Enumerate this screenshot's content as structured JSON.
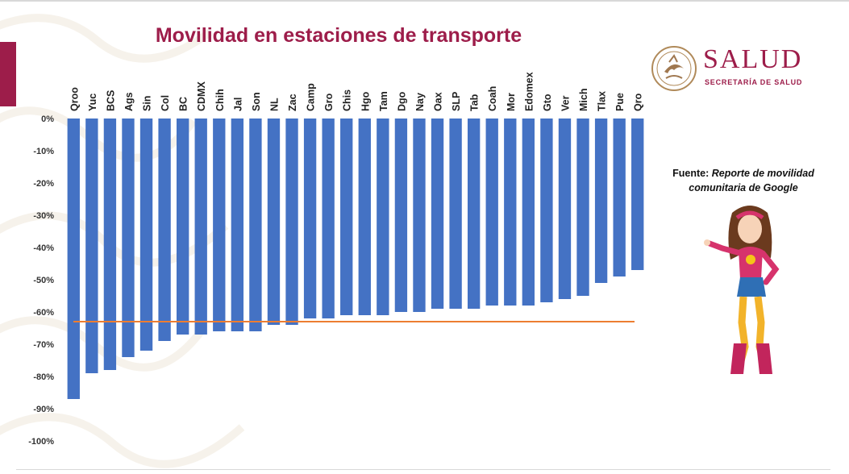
{
  "slide": {
    "title": "Movilidad en estaciones de transporte",
    "source_label": "Fuente:",
    "source_text": "Reporte de movilidad comunitaria de Google"
  },
  "logo": {
    "word": "SALUD",
    "subtitle": "SECRETARÍA DE SALUD",
    "seal_icon": "mexico-coat-of-arms-icon"
  },
  "colors": {
    "bars": "#4472c4",
    "average_line": "#ed7d31",
    "brand": "#9d1d4a"
  },
  "chart_data": {
    "type": "bar",
    "title": "Movilidad en estaciones de transporte",
    "categories": [
      "Qroo",
      "Yuc",
      "BCS",
      "Ags",
      "Sin",
      "Col",
      "BC",
      "CDMX",
      "Chih",
      "Jal",
      "Son",
      "NL",
      "Zac",
      "Camp",
      "Gro",
      "Chis",
      "Hgo",
      "Tam",
      "Dgo",
      "Nay",
      "Oax",
      "SLP",
      "Tab",
      "Coah",
      "Mor",
      "Edomex",
      "Gto",
      "Ver",
      "Mich",
      "Tlax",
      "Pue",
      "Qro"
    ],
    "values": [
      -87,
      -79,
      -78,
      -74,
      -72,
      -69,
      -67,
      -67,
      -66,
      -66,
      -66,
      -64,
      -64,
      -62,
      -62,
      -61,
      -61,
      -61,
      -60,
      -60,
      -59,
      -59,
      -59,
      -58,
      -58,
      -58,
      -57,
      -56,
      -55,
      -51,
      -49,
      -47
    ],
    "reference_line": -63,
    "y_ticks": [
      "0%",
      "-10%",
      "-20%",
      "-30%",
      "-40%",
      "-50%",
      "-60%",
      "-70%",
      "-80%",
      "-90%",
      "-100%"
    ],
    "ylim": [
      -100,
      0
    ],
    "grid": false,
    "legend": "none",
    "xlabel": "",
    "ylabel": ""
  }
}
